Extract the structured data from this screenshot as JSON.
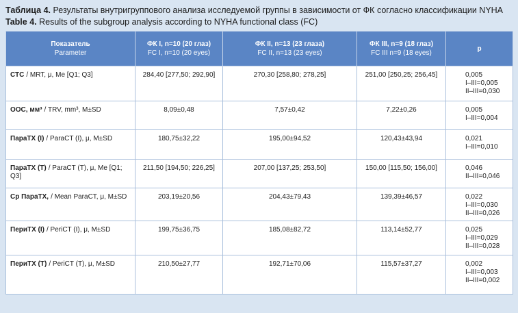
{
  "caption": {
    "ru_label": "Таблица 4.",
    "ru_text": "Результаты внутригруппового анализа исследуемой группы в зависимости от ФК согласно классификации NYHA",
    "en_label": "Table 4.",
    "en_text": "Results of the subgroup analysis according to NYHA functional class (FC)"
  },
  "table": {
    "header": [
      {
        "ru": "Показатель",
        "en": "Parameter"
      },
      {
        "ru": "ФК I, n=10 (20 глаз)",
        "en": "FC I, n=10 (20 eyes)"
      },
      {
        "ru": "ФК II, n=13 (23 глаза)",
        "en": "FC II, n=13 (23 eyes)"
      },
      {
        "ru": "ФК III, n=9 (18 глаз)",
        "en": "FC III n=9 (18 eyes)"
      },
      {
        "ru": "p"
      }
    ],
    "rows": [
      {
        "label_bold": "СТС",
        "label": "/ MRT, μ, Me [Q1; Q3]",
        "values": [
          "284,40 [277,50; 292,90]",
          "270,30 [258,80; 278,25]",
          "251,00 [250,25; 256,45]"
        ],
        "p": [
          "0,005",
          "I–III=0,005",
          "II–III=0,030"
        ]
      },
      {
        "label_bold": "ООС, мм³",
        "label": "/ TRV, mm³, M±SD",
        "values": [
          "8,09±0,48",
          "7,57±0,42",
          "7,22±0,26"
        ],
        "p": [
          "0,005",
          "I–III=0,004"
        ]
      },
      {
        "label_bold": "ПараТХ (I)",
        "label": "/ ParaCT (I), μ, M±SD",
        "values": [
          "180,75±32,22",
          "195,00±94,52",
          "120,43±43,94"
        ],
        "p": [
          "0,021",
          "I–III=0,010"
        ]
      },
      {
        "label_bold": "ПараТХ (Т)",
        "label": "/ ParaCT (T), μ, Me [Q1; Q3]",
        "values": [
          "211,50 [194,50; 226,25]",
          "207,00 [137,25; 253,50]",
          "150,00 [115,50; 156,00]"
        ],
        "p": [
          "0,046",
          "II–III=0,046"
        ]
      },
      {
        "label_bold": "Ср ПараТХ,",
        "label": "/ Mean ParaCT, μ, M±SD",
        "values": [
          "203,19±20,56",
          "204,43±79,43",
          "139,39±46,57"
        ],
        "p": [
          "0,022",
          "I–III=0,030",
          "II–III=0,026"
        ]
      },
      {
        "label_bold": "ПериТХ (I)",
        "label": "/ PeriCT (I), μ, M±SD",
        "values": [
          "199,75±36,75",
          "185,08±82,72",
          "113,14±52,77"
        ],
        "p": [
          "0,025",
          "I–III=0,029",
          "II–III=0,028"
        ]
      },
      {
        "label_bold": "ПериТХ (Т)",
        "label": "/ PeriCT (T), μ, M±SD",
        "values": [
          "210,50±27,77",
          "192,71±70,06",
          "115,57±37,27"
        ],
        "p": [
          "0,002",
          "I–III=0,003",
          "II–III=0,002"
        ]
      }
    ]
  }
}
